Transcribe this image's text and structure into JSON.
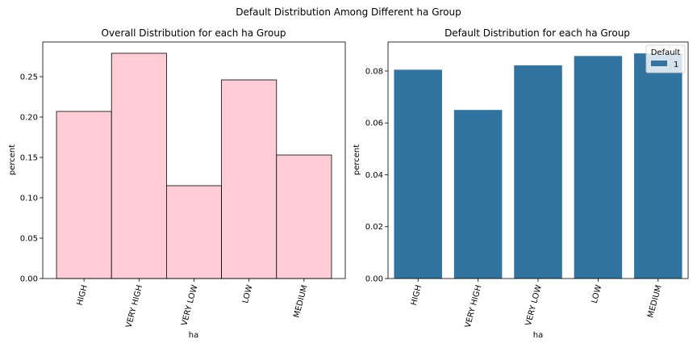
{
  "suptitle": "Default Distribution Among Different ha Group",
  "chart_data": [
    {
      "type": "bar",
      "title": "Overall Distribution for each ha Group",
      "xlabel": "ha",
      "ylabel": "percent",
      "categories": [
        "HIGH",
        "VERY HIGH",
        "VERY LOW",
        "LOW",
        "MEDIUM"
      ],
      "values": [
        0.207,
        0.279,
        0.115,
        0.246,
        0.153
      ],
      "ylim": [
        0,
        0.293
      ],
      "yticks": [
        0.0,
        0.05,
        0.1,
        0.15,
        0.2,
        0.25
      ],
      "ytick_labels": [
        "0.00",
        "0.05",
        "0.10",
        "0.15",
        "0.20",
        "0.25"
      ],
      "bar_color": "#ffcdd6",
      "edge_color": "#000000",
      "grid": false
    },
    {
      "type": "bar",
      "title": "Default Distribution for each ha Group",
      "xlabel": "ha",
      "ylabel": "percent",
      "categories": [
        "HIGH",
        "VERY HIGH",
        "VERY LOW",
        "LOW",
        "MEDIUM"
      ],
      "series": [
        {
          "name": "1",
          "values": [
            0.0805,
            0.065,
            0.0822,
            0.0858,
            0.0868
          ]
        }
      ],
      "ylim": [
        0,
        0.0912
      ],
      "yticks": [
        0.0,
        0.02,
        0.04,
        0.06,
        0.08
      ],
      "ytick_labels": [
        "0.00",
        "0.02",
        "0.04",
        "0.06",
        "0.08"
      ],
      "bar_color": "#3274a1",
      "legend": {
        "title": "Default",
        "placement": "top-right",
        "entries": [
          "1"
        ]
      },
      "grid": false
    }
  ]
}
